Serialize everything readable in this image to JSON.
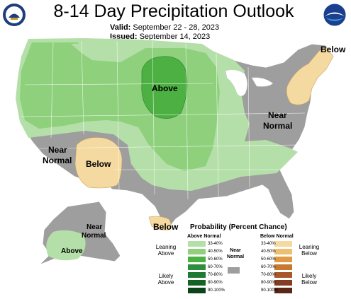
{
  "header": {
    "title": "8-14 Day Precipitation Outlook",
    "valid_label": "Valid:",
    "valid_dates": "September 22 - 28, 2023",
    "issued_label": "Issued:",
    "issued_date": "September 14, 2023"
  },
  "logos": {
    "left": "doc-seal-icon",
    "right": "noaa-logo-icon"
  },
  "colors": {
    "background": "#ffffff",
    "near_normal": "#9e9e9e",
    "above_33_40": "#b5dfa8",
    "above_40_50": "#8ed07c",
    "above_50_60": "#4db042",
    "above_60_70": "#2d8f3c",
    "above_70_80": "#1f7a31",
    "above_80_90": "#146324",
    "above_90_100": "#0b4418",
    "below_33_40": "#f4d9a0",
    "below_40_50": "#eebf6f",
    "below_50_60": "#e09a46",
    "below_60_70": "#c77a2f",
    "below_70_80": "#a9572a",
    "below_80_90": "#823d23",
    "below_90_100": "#5a2618"
  },
  "map_labels": {
    "above_central": "Above",
    "below_southwest": "Below",
    "below_northeast": "Below",
    "below_florida": "Below",
    "near_normal_west_1": "Near",
    "near_normal_west_2": "Normal",
    "near_normal_east_1": "Near",
    "near_normal_east_2": "Normal",
    "near_normal_alaska_1": "Near",
    "near_normal_alaska_2": "Normal",
    "above_alaska": "Above"
  },
  "legend": {
    "title": "Probability (Percent Chance)",
    "above_header": "Above Normal",
    "below_header": "Below Normal",
    "near_normal_1": "Near",
    "near_normal_2": "Normal",
    "leaning_above_1": "Leaning",
    "leaning_above_2": "Above",
    "likely_above_1": "Likely",
    "likely_above_2": "Above",
    "leaning_below_1": "Leaning",
    "leaning_below_2": "Below",
    "likely_below_1": "Likely",
    "likely_below_2": "Below",
    "bins": [
      "33-40%",
      "40-50%",
      "50-60%",
      "60-70%",
      "70-80%",
      "80-90%",
      "90-100%"
    ]
  }
}
